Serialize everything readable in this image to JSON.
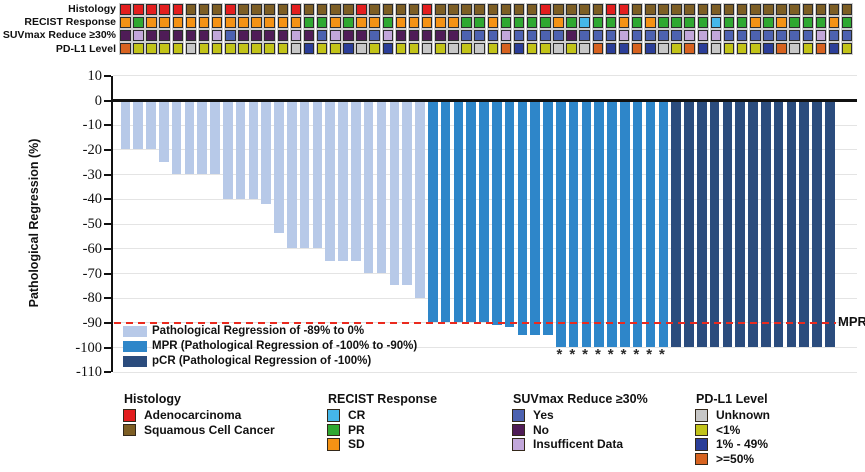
{
  "figure": {
    "n_patients": 56,
    "annotation_symbol": "*"
  },
  "tracks": {
    "color_map": {
      "A": "#e31e1e",
      "S": "#7d5e24",
      "CR": "#45b7e9",
      "PR": "#2fa831",
      "SD": "#f49214",
      "Y": "#4d62b0",
      "N": "#4f1c57",
      "I": "#c2a7da",
      "U": "#c7c7c7",
      "LT1": "#c2c319",
      "B49": "#2b3e98",
      "GE50": "#d76320"
    },
    "rows": [
      {
        "label": "Histology",
        "values": [
          "A",
          "A",
          "A",
          "A",
          "A",
          "S",
          "S",
          "S",
          "A",
          "S",
          "S",
          "S",
          "S",
          "A",
          "S",
          "S",
          "S",
          "S",
          "A",
          "S",
          "S",
          "S",
          "S",
          "A",
          "S",
          "S",
          "S",
          "S",
          "S",
          "S",
          "S",
          "S",
          "A",
          "S",
          "S",
          "S",
          "S",
          "A",
          "A",
          "S",
          "S",
          "S",
          "S",
          "S",
          "S",
          "S",
          "S",
          "S",
          "S",
          "S",
          "S",
          "S",
          "S",
          "S",
          "S",
          "S"
        ]
      },
      {
        "label": "RECIST Response",
        "values": [
          "SD",
          "PR",
          "SD",
          "SD",
          "SD",
          "SD",
          "SD",
          "SD",
          "SD",
          "SD",
          "SD",
          "SD",
          "SD",
          "SD",
          "PR",
          "PR",
          "SD",
          "PR",
          "SD",
          "SD",
          "PR",
          "SD",
          "SD",
          "SD",
          "SD",
          "SD",
          "PR",
          "PR",
          "SD",
          "PR",
          "PR",
          "PR",
          "PR",
          "SD",
          "PR",
          "CR",
          "PR",
          "PR",
          "SD",
          "PR",
          "SD",
          "PR",
          "PR",
          "PR",
          "PR",
          "CR",
          "PR",
          "PR",
          "SD",
          "PR",
          "SD",
          "PR",
          "PR",
          "PR",
          "SD",
          "PR"
        ]
      },
      {
        "label": "SUVmax Reduce ≥30%",
        "values": [
          "N",
          "I",
          "N",
          "N",
          "N",
          "N",
          "N",
          "I",
          "Y",
          "N",
          "N",
          "N",
          "N",
          "I",
          "N",
          "Y",
          "I",
          "N",
          "N",
          "Y",
          "I",
          "N",
          "N",
          "N",
          "N",
          "N",
          "Y",
          "Y",
          "Y",
          "I",
          "Y",
          "Y",
          "Y",
          "Y",
          "N",
          "Y",
          "Y",
          "Y",
          "I",
          "Y",
          "Y",
          "Y",
          "Y",
          "I",
          "I",
          "I",
          "Y",
          "Y",
          "Y",
          "Y",
          "Y",
          "Y",
          "Y",
          "I",
          "Y",
          "Y"
        ]
      },
      {
        "label": "PD-L1 Level",
        "values": [
          "GE50",
          "LT1",
          "LT1",
          "LT1",
          "LT1",
          "U",
          "LT1",
          "LT1",
          "LT1",
          "LT1",
          "LT1",
          "LT1",
          "LT1",
          "U",
          "B49",
          "LT1",
          "LT1",
          "B49",
          "U",
          "LT1",
          "B49",
          "LT1",
          "LT1",
          "U",
          "LT1",
          "U",
          "LT1",
          "U",
          "LT1",
          "GE50",
          "B49",
          "LT1",
          "LT1",
          "U",
          "LT1",
          "U",
          "GE50",
          "B49",
          "B49",
          "GE50",
          "B49",
          "U",
          "LT1",
          "GE50",
          "B49",
          "U",
          "LT1",
          "LT1",
          "LT1",
          "B49",
          "GE50",
          "U",
          "LT1",
          "GE50",
          "B49",
          "LT1"
        ]
      }
    ]
  },
  "chart_data": {
    "type": "bar",
    "title": "",
    "xlabel": "",
    "ylabel": "Pathological Regression (%)",
    "ylim": [
      -110,
      10
    ],
    "yticks": [
      10,
      0,
      -10,
      -20,
      -30,
      -40,
      -50,
      -60,
      -70,
      -80,
      -90,
      -100,
      -110
    ],
    "grid": true,
    "values": [
      -20,
      -20,
      -20,
      -25,
      -30,
      -30,
      -30,
      -30,
      -40,
      -40,
      -40,
      -42,
      -54,
      -60,
      -60,
      -60,
      -65,
      -65,
      -65,
      -70,
      -70,
      -75,
      -75,
      -80,
      -90,
      -90,
      -90,
      -90,
      -90,
      -91,
      -92,
      -95,
      -95,
      -95,
      -100,
      -100,
      -100,
      -100,
      -100,
      -100,
      -100,
      -100,
      -100,
      -100,
      -100,
      -100,
      -100,
      -100,
      -100,
      -100,
      -100,
      -100,
      -100,
      -100,
      -100,
      -100
    ],
    "segments": [
      {
        "name": "partial",
        "label": "Pathological Regression of -89% to 0%",
        "color": "#b7c9e8",
        "from": 1,
        "to": 24
      },
      {
        "name": "mpr",
        "label": "MPR (Pathological Regression of -100% to -90%)",
        "color": "#2e86c9",
        "from": 25,
        "to": 43
      },
      {
        "name": "pcr",
        "label": "pCR (Pathological Regression of -100%)",
        "color": "#2b4c7d",
        "from": 44,
        "to": 56
      }
    ],
    "asterisk_bars": [
      35,
      36,
      37,
      38,
      39,
      40,
      41,
      42,
      43
    ],
    "reference_line": {
      "y": -90,
      "label": "MPR",
      "color": "#ea2a1e",
      "style": "dashed"
    },
    "legend_position": "inside bottom-left"
  },
  "bottom_legend": [
    {
      "title": "Histology",
      "items": [
        {
          "label": "Adenocarcinoma",
          "key": "A"
        },
        {
          "label": "Squamous Cell Cancer",
          "key": "S"
        }
      ]
    },
    {
      "title": "RECIST Response",
      "items": [
        {
          "label": "CR",
          "key": "CR"
        },
        {
          "label": "PR",
          "key": "PR"
        },
        {
          "label": "SD",
          "key": "SD"
        }
      ]
    },
    {
      "title": "SUVmax Reduce ≥30%",
      "items": [
        {
          "label": "Yes",
          "key": "Y"
        },
        {
          "label": "No",
          "key": "N"
        },
        {
          "label": "Insufficent Data",
          "key": "I"
        }
      ]
    },
    {
      "title": "PD-L1 Level",
      "items": [
        {
          "label": "Unknown",
          "key": "U"
        },
        {
          "label": "<1%",
          "key": "LT1"
        },
        {
          "label": "1% - 49%",
          "key": "B49"
        },
        {
          "label": ">=50%",
          "key": "GE50"
        }
      ]
    }
  ]
}
